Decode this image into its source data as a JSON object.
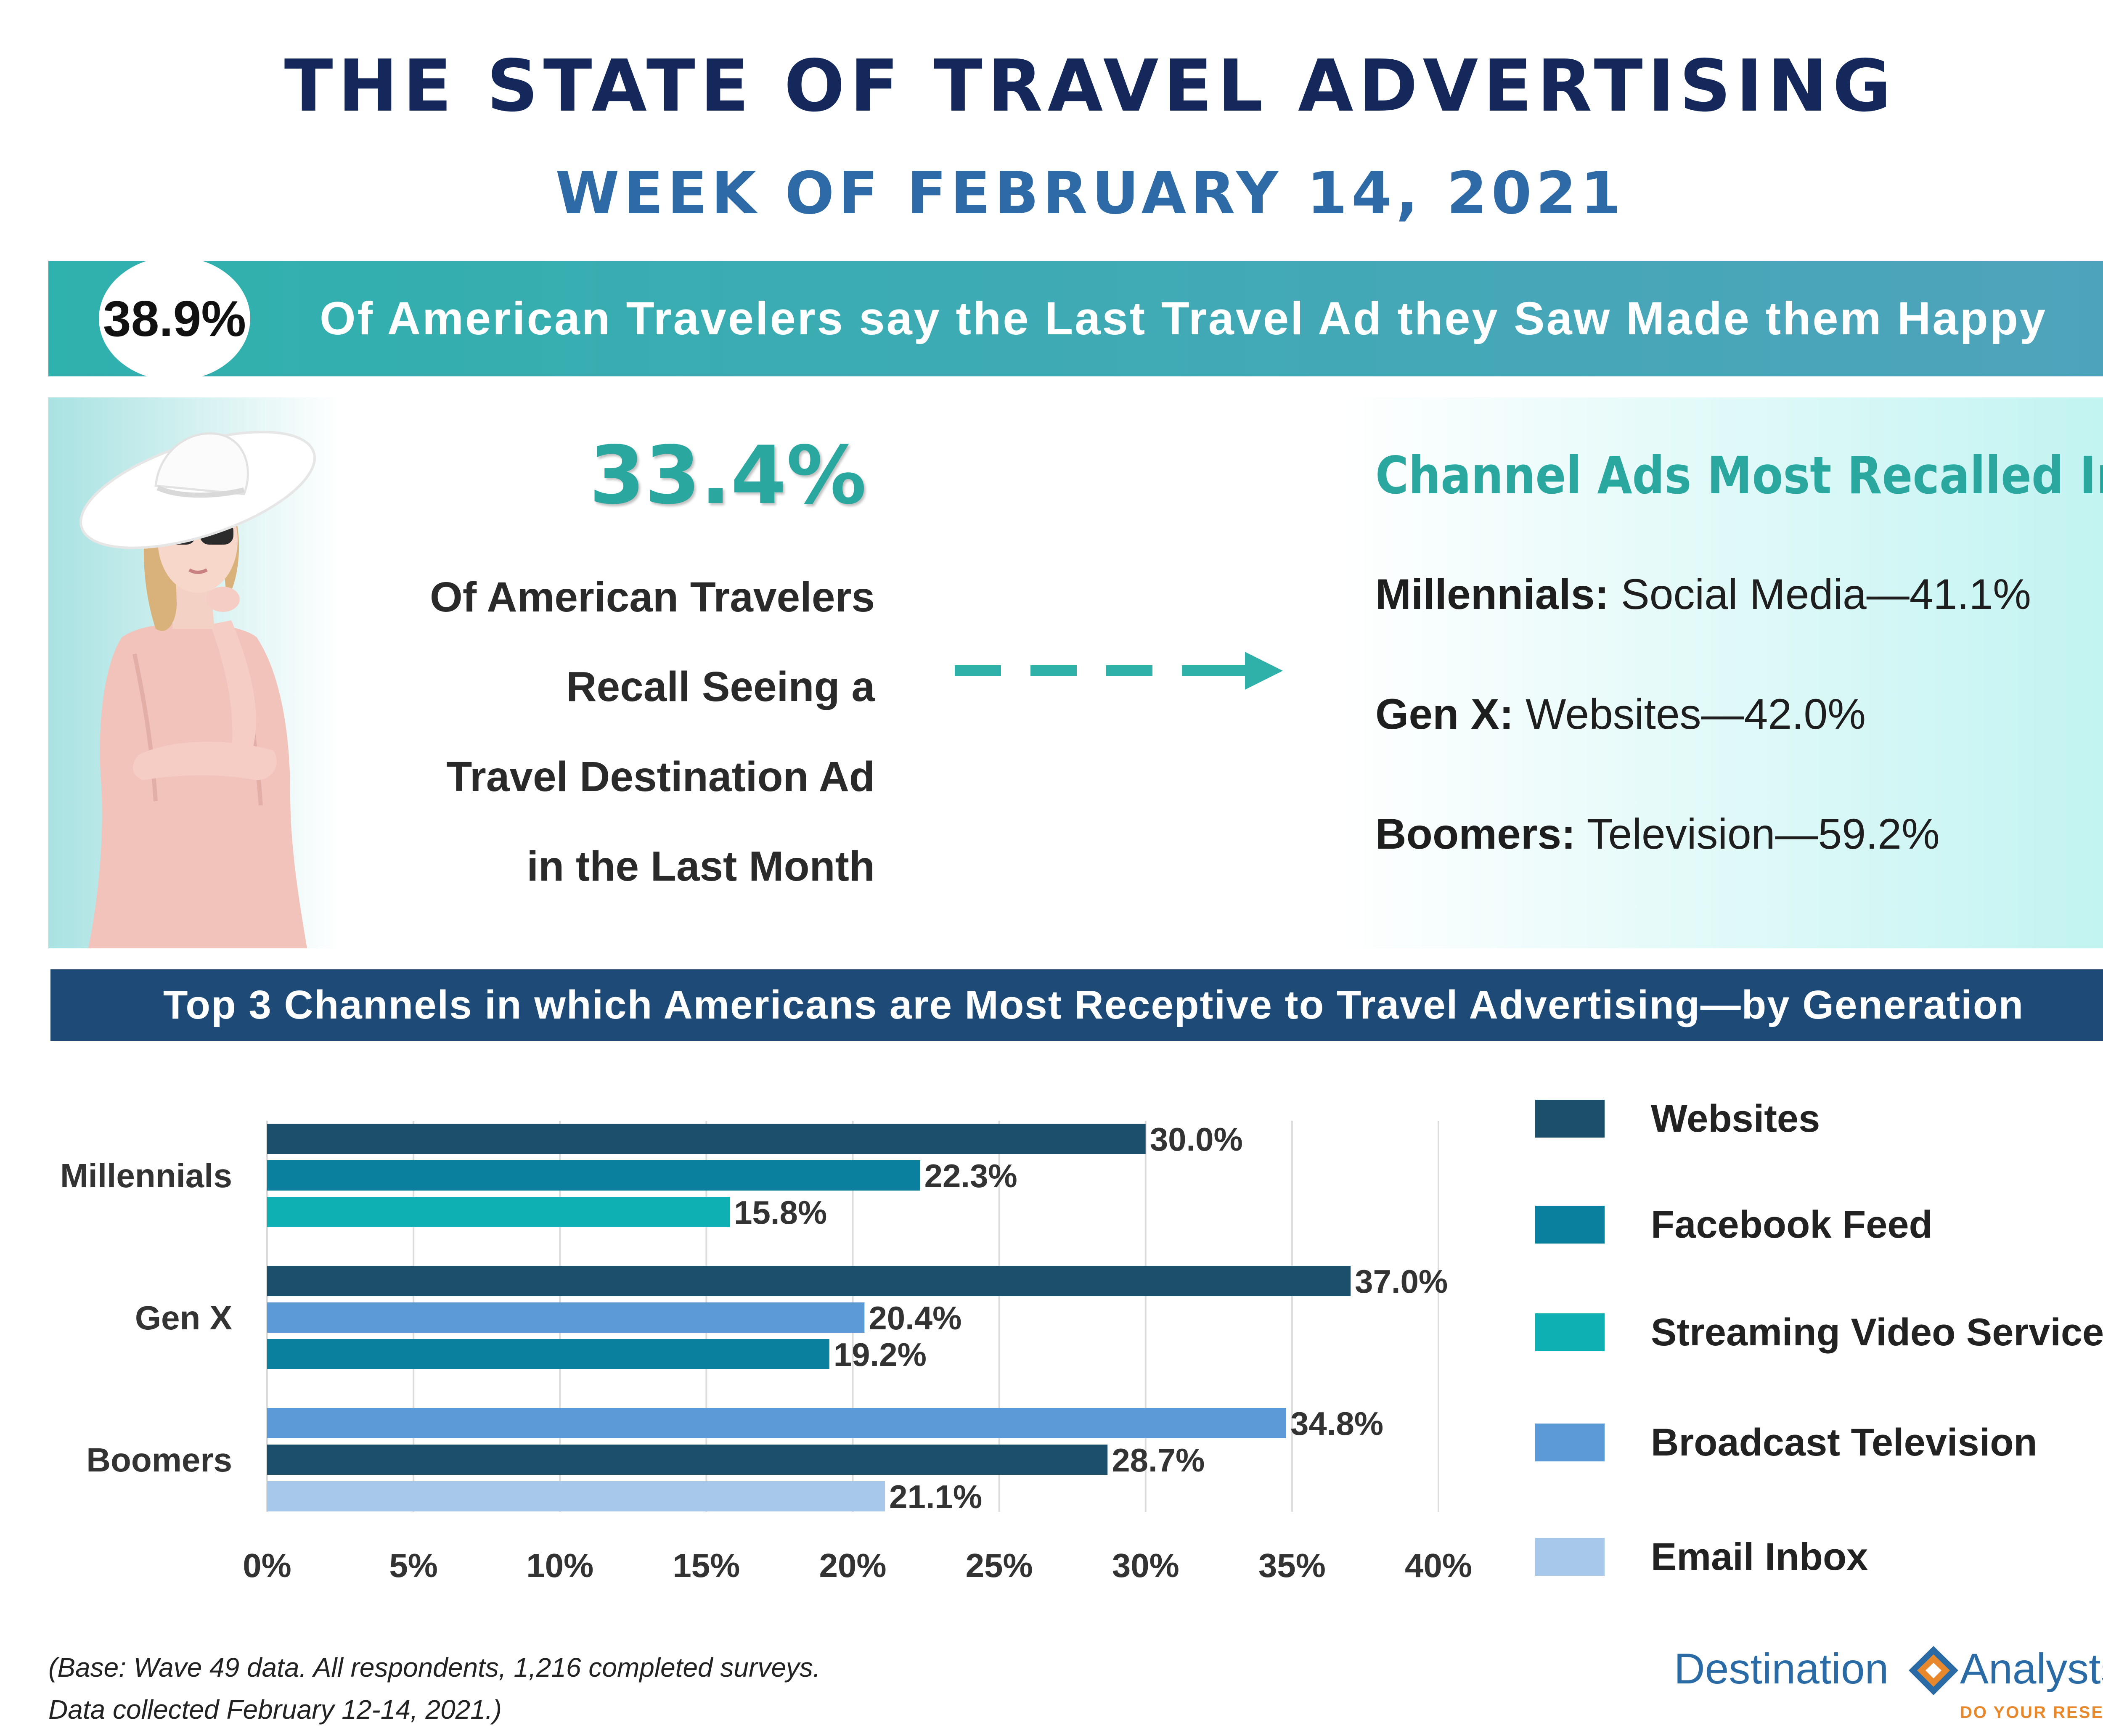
{
  "header": {
    "title": "THE STATE OF TRAVEL ADVERTISING",
    "subtitle": "WEEK OF FEBRUARY 14, 2021"
  },
  "banner": {
    "stat": "38.9%",
    "text": "Of American Travelers say the Last Travel Ad they Saw Made them Happy"
  },
  "recall": {
    "stat": "33.4%",
    "lines": [
      "Of American Travelers",
      "Recall Seeing a",
      "Travel Destination Ad",
      "in the Last Month"
    ]
  },
  "channels_recalled": {
    "heading": "Channel Ads Most Recalled In",
    "items": [
      {
        "generation": "Millennials:",
        "detail": "Social Media—41.1%"
      },
      {
        "generation": "Gen X:",
        "detail": "Websites—42.0%"
      },
      {
        "generation": "Boomers:",
        "detail": "Television—59.2%"
      }
    ]
  },
  "section_header": "Top 3 Channels in which Americans are Most Receptive to Travel Advertising—by Generation",
  "chart_data": {
    "type": "bar",
    "orientation": "horizontal",
    "title": "Top 3 Channels in which Americans are Most Receptive to Travel Advertising—by Generation",
    "categories": [
      "Millennials",
      "Gen X",
      "Boomers"
    ],
    "xlim": [
      0,
      40
    ],
    "x_ticks": [
      "0%",
      "5%",
      "10%",
      "15%",
      "20%",
      "25%",
      "30%",
      "35%",
      "40%"
    ],
    "grid": "vertical",
    "legend_position": "right",
    "legend": [
      {
        "name": "Websites",
        "color": "#1c4f6a"
      },
      {
        "name": "Facebook Feed",
        "color": "#0a7f9e"
      },
      {
        "name": "Streaming Video Services",
        "color": "#0eb0b3"
      },
      {
        "name": "Broadcast Television",
        "color": "#5b9ad6"
      },
      {
        "name": "Email Inbox",
        "color": "#a7c8ea"
      }
    ],
    "groups": [
      {
        "category": "Millennials",
        "bars": [
          {
            "series": "Websites",
            "value": 30.0,
            "label": "30.0%"
          },
          {
            "series": "Facebook Feed",
            "value": 22.3,
            "label": "22.3%"
          },
          {
            "series": "Streaming Video Services",
            "value": 15.8,
            "label": "15.8%"
          }
        ]
      },
      {
        "category": "Gen X",
        "bars": [
          {
            "series": "Websites",
            "value": 37.0,
            "label": "37.0%"
          },
          {
            "series": "Broadcast Television",
            "value": 20.4,
            "label": "20.4%"
          },
          {
            "series": "Facebook Feed",
            "value": 19.2,
            "label": "19.2%"
          }
        ]
      },
      {
        "category": "Boomers",
        "bars": [
          {
            "series": "Broadcast Television",
            "value": 34.8,
            "label": "34.8%"
          },
          {
            "series": "Websites",
            "value": 28.7,
            "label": "28.7%"
          },
          {
            "series": "Email Inbox",
            "value": 21.1,
            "label": "21.1%"
          }
        ]
      }
    ]
  },
  "footer": {
    "note_line1": "(Base: Wave 49 data. All respondents, 1,216 completed surveys.",
    "note_line2": "Data collected February 12-14, 2021.)",
    "logo_word1": "Destination",
    "logo_word2": "Analysts",
    "logo_tagline": "DO YOUR RESEARCH",
    "logo_colors": {
      "blue": "#2a6aa5",
      "orange": "#e8882d"
    }
  }
}
